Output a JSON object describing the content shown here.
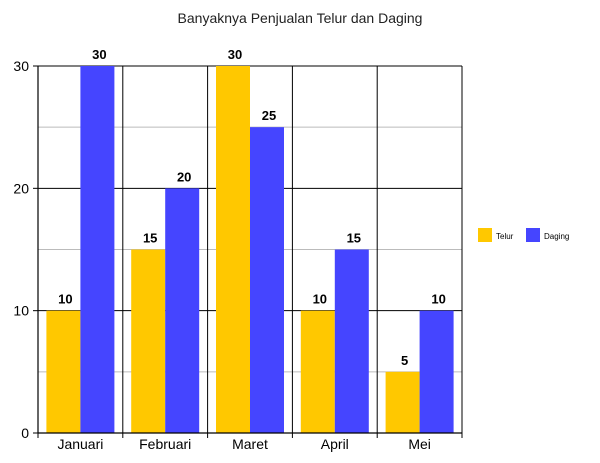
{
  "chart_data": {
    "type": "bar",
    "title": "Banyaknya Penjualan Telur dan Daging",
    "categories": [
      "Januari",
      "Februari",
      "Maret",
      "April",
      "Mei"
    ],
    "series": [
      {
        "name": "Telur",
        "values": [
          10,
          15,
          30,
          10,
          5
        ],
        "color": "#ffc800"
      },
      {
        "name": "Daging",
        "values": [
          30,
          20,
          25,
          15,
          10
        ],
        "color": "#4545ff"
      }
    ],
    "ylim": [
      0,
      30
    ],
    "yticks": [
      "0",
      "10",
      "20",
      "30"
    ],
    "grid": true,
    "legend": "right",
    "data_labels": true
  }
}
